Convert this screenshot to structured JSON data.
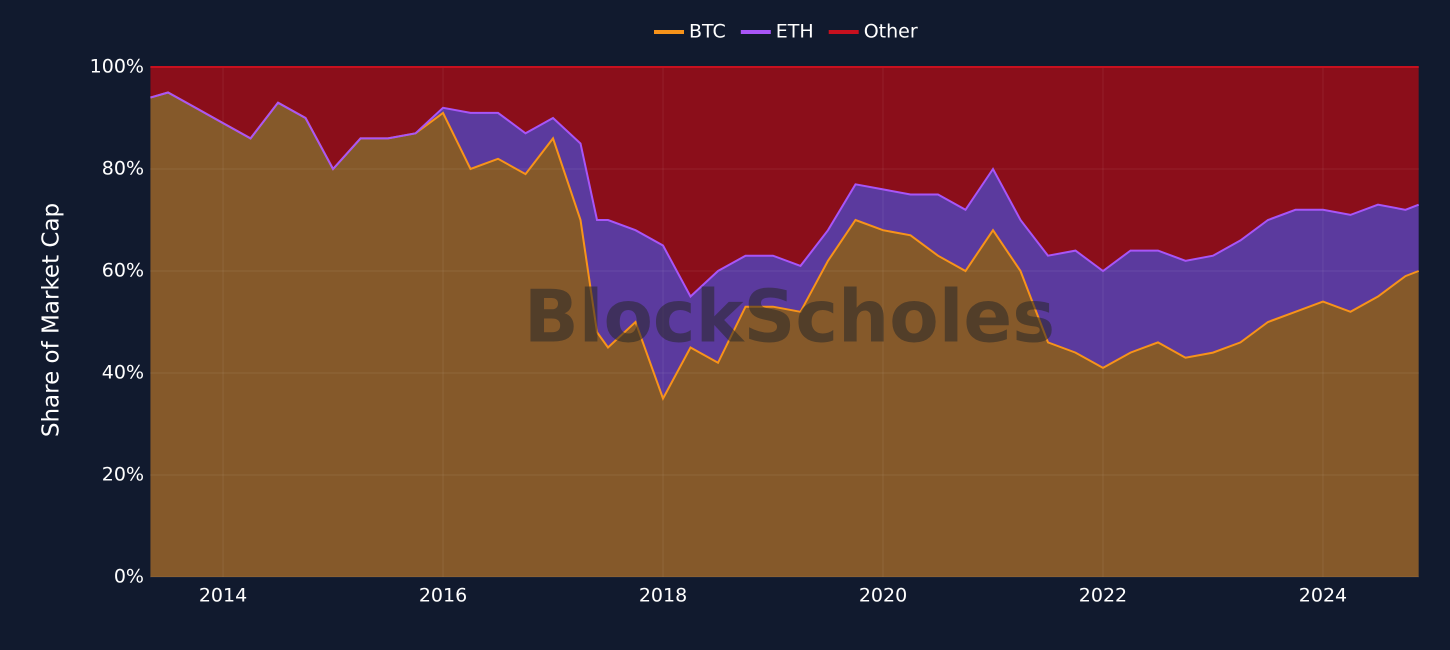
{
  "chart_data": {
    "type": "stacked_area",
    "ylabel": "Share of Market Cap",
    "watermark": "BlockScholes",
    "x": [
      2013.34,
      2013.5,
      2013.75,
      2014.0,
      2014.25,
      2014.5,
      2014.75,
      2015.0,
      2015.25,
      2015.5,
      2015.75,
      2016.0,
      2016.25,
      2016.5,
      2016.75,
      2017.0,
      2017.25,
      2017.4,
      2017.5,
      2017.75,
      2018.0,
      2018.25,
      2018.5,
      2018.75,
      2019.0,
      2019.25,
      2019.5,
      2019.75,
      2020.0,
      2020.25,
      2020.5,
      2020.75,
      2021.0,
      2021.25,
      2021.5,
      2021.75,
      2022.0,
      2022.25,
      2022.5,
      2022.75,
      2023.0,
      2023.25,
      2023.5,
      2023.75,
      2024.0,
      2024.25,
      2024.5,
      2024.75,
      2024.87
    ],
    "series": [
      {
        "name": "BTC",
        "color": "#f7931a",
        "fill": "#85592a",
        "values": [
          94,
          95,
          92,
          89,
          86,
          93,
          90,
          80,
          86,
          86,
          87,
          91,
          80,
          82,
          79,
          86,
          70,
          48,
          45,
          50,
          35,
          45,
          42,
          53,
          53,
          52,
          62,
          70,
          68,
          67,
          63,
          60,
          68,
          60,
          46,
          44,
          41,
          44,
          46,
          43,
          44,
          46,
          50,
          52,
          54,
          52,
          55,
          59,
          60
        ]
      },
      {
        "name": "ETH",
        "color": "#a855f7",
        "fill": "#5b3a9e",
        "values": [
          0,
          0,
          0,
          0,
          0,
          0,
          0,
          0,
          0,
          0,
          0,
          1,
          11,
          9,
          8,
          4,
          15,
          22,
          25,
          18,
          30,
          10,
          18,
          10,
          10,
          9,
          6,
          7,
          8,
          8,
          12,
          12,
          12,
          10,
          17,
          20,
          19,
          20,
          18,
          19,
          19,
          20,
          20,
          20,
          18,
          19,
          18,
          13,
          13
        ]
      },
      {
        "name": "Other",
        "color": "#c8101e",
        "fill": "#8b0e1a",
        "values": [
          6,
          5,
          8,
          11,
          14,
          7,
          10,
          20,
          14,
          14,
          13,
          8,
          9,
          9,
          13,
          10,
          15,
          30,
          30,
          32,
          35,
          45,
          40,
          37,
          37,
          39,
          32,
          23,
          24,
          25,
          25,
          28,
          20,
          30,
          37,
          36,
          40,
          36,
          36,
          38,
          37,
          34,
          30,
          28,
          28,
          29,
          27,
          28,
          27
        ]
      }
    ],
    "xlim": [
      2013.336,
      2024.873
    ],
    "xticks": [
      2014,
      2016,
      2018,
      2020,
      2022,
      2024
    ],
    "ylim": [
      0,
      100
    ],
    "yticks": [
      {
        "value": 0,
        "label": "0%"
      },
      {
        "value": 20,
        "label": "20%"
      },
      {
        "value": 40,
        "label": "40%"
      },
      {
        "value": 60,
        "label": "60%"
      },
      {
        "value": 80,
        "label": "80%"
      },
      {
        "value": 100,
        "label": "100%"
      }
    ],
    "grid": true,
    "legend": "top"
  }
}
